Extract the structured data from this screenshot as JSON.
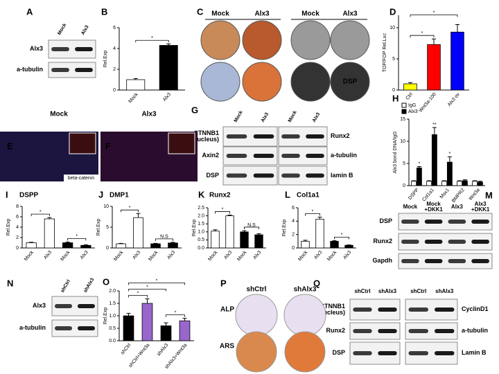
{
  "chart_data": [
    {
      "type": "bar",
      "panel": "B",
      "ylabel": "Rel.Exp",
      "categories": [
        "Mock",
        "Alx3"
      ],
      "values": [
        1.0,
        4.3
      ],
      "errors": [
        0.1,
        0.15
      ],
      "colors": [
        "#ffffff",
        "#000000"
      ],
      "ylim": [
        0,
        6
      ],
      "yticks": [
        0,
        2,
        4,
        6
      ],
      "annotations": [
        "*"
      ]
    },
    {
      "type": "bar",
      "panel": "D",
      "ylabel": "TOP/FOP Rel.Luc",
      "categories": [
        "Ctrl",
        "Wnt3a-100",
        "Alx3 ov"
      ],
      "values": [
        1.0,
        7.3,
        9.3
      ],
      "errors": [
        0.2,
        0.9,
        1.2
      ],
      "colors": [
        "#ffff00",
        "#ff0000",
        "#0000ff"
      ],
      "ylim": [
        0,
        12
      ],
      "yticks": [
        0,
        5,
        10
      ],
      "annotations": [
        "*",
        "*"
      ]
    },
    {
      "type": "grouped_bar",
      "panel": "H",
      "ylabel": "Alx3 bond DNA/IgG",
      "categories": [
        "DSPP",
        "Col1a1",
        "Msx1",
        "BMPR2",
        "Wnt3a"
      ],
      "series": [
        {
          "name": "IgG",
          "color": "#ffffff",
          "values": [
            1,
            1,
            1,
            1,
            1
          ],
          "errors": [
            0.1,
            0.1,
            0.1,
            0.1,
            0.1
          ]
        },
        {
          "name": "Alx3",
          "color": "#000000",
          "values": [
            4.0,
            11.5,
            5.3,
            1.1,
            0.8
          ],
          "errors": [
            0.3,
            1.6,
            1.2,
            0.2,
            0.2
          ]
        }
      ],
      "ylim": [
        0,
        15
      ],
      "yticks": [
        0,
        5,
        10,
        15
      ],
      "annotations": [
        "*",
        "**",
        "*"
      ]
    },
    {
      "type": "bar",
      "panel": "I",
      "title": "DSPP",
      "ylabel": "Rel.Exp",
      "categories": [
        "Mock",
        "Alx3",
        "Mock",
        "Alx3"
      ],
      "values": [
        1.0,
        5.6,
        1.0,
        0.5
      ],
      "errors": [
        0.1,
        0.25,
        0.15,
        0.1
      ],
      "colors": [
        "#ffffff",
        "#ffffff",
        "#000000",
        "#000000"
      ],
      "ylim": [
        0,
        8
      ],
      "yticks": [
        0,
        2,
        4,
        6,
        8
      ],
      "annotations": [
        "*",
        "*"
      ]
    },
    {
      "type": "bar",
      "panel": "J",
      "title": "DMP1",
      "ylabel": "Rel.Exp",
      "categories": [
        "Mock",
        "Alx3",
        "Mock",
        "Alx3"
      ],
      "values": [
        1.0,
        7.3,
        1.0,
        1.2
      ],
      "errors": [
        0.1,
        1.0,
        0.1,
        0.15
      ],
      "colors": [
        "#ffffff",
        "#ffffff",
        "#000000",
        "#000000"
      ],
      "ylim": [
        0,
        10
      ],
      "yticks": [
        0,
        5,
        10
      ],
      "annotations": [
        "*",
        "N.S"
      ]
    },
    {
      "type": "bar",
      "panel": "K",
      "title": "Runx2",
      "ylabel": "Rel.Exp",
      "categories": [
        "Mock",
        "Alx3",
        "Mock",
        "Alx3"
      ],
      "values": [
        1.05,
        2.0,
        1.0,
        0.82
      ],
      "errors": [
        0.08,
        0.05,
        0.08,
        0.07
      ],
      "colors": [
        "#ffffff",
        "#ffffff",
        "#000000",
        "#000000"
      ],
      "ylim": [
        0,
        2.5
      ],
      "yticks": [
        {
          "value": 0,
          "label": "0.0"
        },
        0.5,
        {
          "value": 1,
          "label": "1.0"
        },
        1.5,
        {
          "value": 2,
          "label": "2.0"
        },
        2.5
      ],
      "annotations": [
        "*",
        "N.S"
      ]
    },
    {
      "type": "bar",
      "panel": "L",
      "title": "Col1a1",
      "ylabel": "Rel.Exp",
      "categories": [
        "Mock",
        "Alx3",
        "Mock",
        "Alx3"
      ],
      "values": [
        1.0,
        4.3,
        1.0,
        0.4
      ],
      "errors": [
        0.15,
        0.3,
        0.1,
        0.05
      ],
      "colors": [
        "#ffffff",
        "#ffffff",
        "#000000",
        "#000000"
      ],
      "ylim": [
        0,
        6
      ],
      "yticks": [
        0,
        2,
        4,
        6
      ],
      "annotations": [
        "*",
        "*"
      ]
    },
    {
      "type": "bar",
      "panel": "O",
      "ylabel": "Rel.Exp",
      "categories": [
        "shCtrl",
        "shCtrl+Wnt3a",
        "shAlx3",
        "shAlx3+Wnt3a"
      ],
      "values": [
        1.0,
        1.5,
        0.6,
        0.8
      ],
      "errors": [
        0.1,
        0.18,
        0.12,
        0.1
      ],
      "colors": [
        "#000000",
        "#9966cc",
        "#000000",
        "#9966cc"
      ],
      "ylim": [
        0,
        2
      ],
      "yticks": [
        {
          "value": 0,
          "label": "0.0"
        },
        0.5,
        {
          "value": 1,
          "label": "1.0"
        },
        1.5,
        {
          "value": 2,
          "label": "2.0"
        }
      ],
      "annotations": [
        "*",
        "*",
        "*",
        "*"
      ]
    }
  ],
  "blots": [
    {
      "panel": "A",
      "columns": [
        "Mock",
        "Alx3"
      ],
      "rows": [
        "Alx3",
        "a-tubulin"
      ]
    },
    {
      "panel": "G",
      "columns": [
        "Mock",
        "Alx3",
        "Mock",
        "Alx3"
      ],
      "rows": [
        "CTNNB1 (Nucleus)",
        "Axin2",
        "DSP"
      ],
      "rows_right": [
        "Runx2",
        "a-tubulin",
        "lamin B"
      ]
    },
    {
      "panel": "M",
      "columns": [
        "Mock",
        "Mock +DKK1",
        "Alx3",
        "Alx3 +DKK1"
      ],
      "rows": [
        "DSP",
        "Runx2",
        "Gapdh"
      ]
    },
    {
      "panel": "N",
      "columns": [
        "shCtrl",
        "shAlx3"
      ],
      "rows": [
        "Alx3",
        "a-tubulin"
      ]
    },
    {
      "panel": "Q",
      "columns": [
        "shCtrl",
        "shAlx3",
        "shCtrl",
        "shAlx3"
      ],
      "rows": [
        "CTNNB1 (Nucleus)",
        "Runx2",
        "DSP"
      ],
      "rows_right": [
        "CyclinD1",
        "a-tubulin",
        "Lamin B"
      ]
    }
  ],
  "images": [
    {
      "panel": "C",
      "columns": [
        "Mock",
        "Alx3",
        "Mock",
        "Alx3"
      ],
      "label": "DSP"
    },
    {
      "panel": "E",
      "header": "Mock",
      "label": "beta-catenin"
    },
    {
      "panel": "F",
      "header": "Alx3"
    },
    {
      "panel": "P",
      "columns": [
        "shCtrl",
        "shAlx3"
      ],
      "rows": [
        "ALP",
        "ARS"
      ]
    }
  ]
}
